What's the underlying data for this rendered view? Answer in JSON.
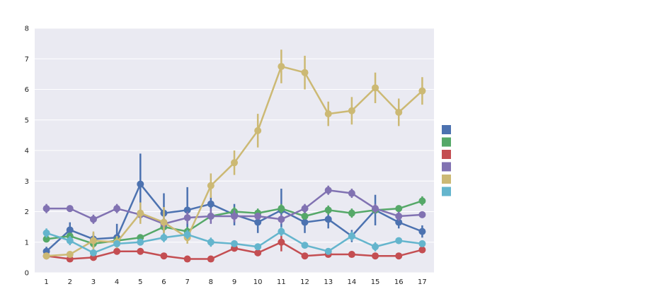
{
  "chart_data": {
    "type": "line",
    "title": "",
    "xlabel": "",
    "ylabel": "",
    "legend_title": "",
    "legend_placement": "right",
    "grid": true,
    "style": "seaborn-darkgrid",
    "x": [
      1,
      2,
      3,
      4,
      5,
      6,
      7,
      8,
      9,
      10,
      11,
      12,
      13,
      14,
      15,
      16,
      17
    ],
    "ylim": [
      0,
      8
    ],
    "yticks": [
      0,
      1,
      2,
      3,
      4,
      5,
      6,
      7,
      8
    ],
    "series": [
      {
        "name": "",
        "color": "#4C72B0",
        "values": [
          0.7,
          1.4,
          1.1,
          1.15,
          2.9,
          1.95,
          2.05,
          2.25,
          1.9,
          1.65,
          2.05,
          1.65,
          1.75,
          1.2,
          2.05,
          1.65,
          1.35
        ],
        "err": [
          0.15,
          0.25,
          0.2,
          0.45,
          1.0,
          0.65,
          0.75,
          0.25,
          0.35,
          0.35,
          0.7,
          0.35,
          0.3,
          0.2,
          0.5,
          0.2,
          0.2
        ]
      },
      {
        "name": "",
        "color": "#55A868",
        "values": [
          1.1,
          1.2,
          0.95,
          1.05,
          1.15,
          1.5,
          1.35,
          1.85,
          2.0,
          1.95,
          2.1,
          1.85,
          2.05,
          1.95,
          2.05,
          2.1,
          2.35
        ],
        "err": [
          0.1,
          0.1,
          0.15,
          0.1,
          0.1,
          0.15,
          0.15,
          0.1,
          0.15,
          0.15,
          0.15,
          0.1,
          0.15,
          0.15,
          0.1,
          0.1,
          0.15
        ]
      },
      {
        "name": "",
        "color": "#C44E52",
        "values": [
          0.55,
          0.45,
          0.5,
          0.7,
          0.7,
          0.55,
          0.45,
          0.45,
          0.8,
          0.65,
          1.0,
          0.55,
          0.6,
          0.6,
          0.55,
          0.55,
          0.75
        ],
        "err": [
          0.05,
          0.05,
          0.05,
          0.05,
          0.05,
          0.05,
          0.05,
          0.05,
          0.1,
          0.05,
          0.3,
          0.05,
          0.05,
          0.05,
          0.05,
          0.05,
          0.05
        ]
      },
      {
        "name": "",
        "color": "#8172B2",
        "values": [
          2.1,
          2.1,
          1.75,
          2.1,
          1.9,
          1.6,
          1.8,
          1.85,
          1.85,
          1.85,
          1.75,
          2.1,
          2.7,
          2.6,
          2.1,
          1.85,
          1.9
        ],
        "err": [
          0.15,
          0.1,
          0.15,
          0.15,
          0.2,
          0.2,
          0.2,
          0.25,
          0.2,
          0.1,
          0.15,
          0.15,
          0.15,
          0.15,
          0.15,
          0.15,
          0.1
        ]
      },
      {
        "name": "",
        "color": "#CCB974",
        "values": [
          0.55,
          0.6,
          1.05,
          1.0,
          1.95,
          1.65,
          1.15,
          2.85,
          3.6,
          4.65,
          6.75,
          6.55,
          5.2,
          5.3,
          6.05,
          5.25,
          5.95
        ],
        "err": [
          0.1,
          0.1,
          0.3,
          0.2,
          0.35,
          0.5,
          0.2,
          0.4,
          0.4,
          0.55,
          0.55,
          0.55,
          0.4,
          0.45,
          0.5,
          0.45,
          0.45
        ]
      },
      {
        "name": "",
        "color": "#64B5CD",
        "values": [
          1.3,
          1.05,
          0.65,
          0.95,
          1.0,
          1.15,
          1.25,
          1.0,
          0.95,
          0.85,
          1.35,
          0.9,
          0.7,
          1.2,
          0.85,
          1.05,
          0.95
        ],
        "err": [
          0.15,
          0.15,
          0.1,
          0.1,
          0.1,
          0.15,
          0.15,
          0.15,
          0.1,
          0.1,
          0.15,
          0.1,
          0.1,
          0.15,
          0.15,
          0.1,
          0.1
        ]
      }
    ]
  }
}
